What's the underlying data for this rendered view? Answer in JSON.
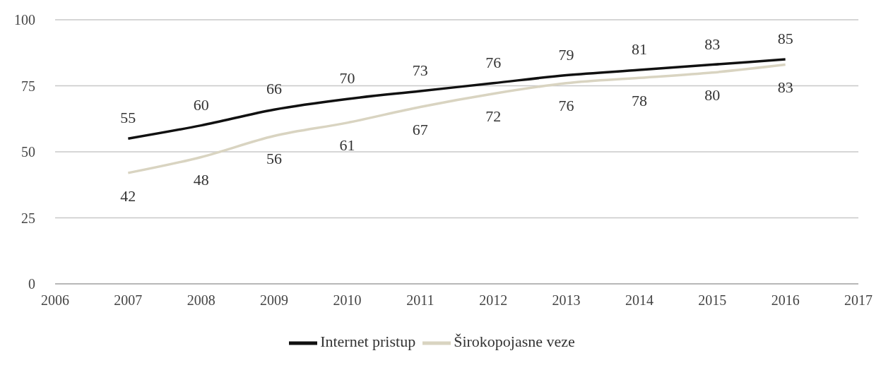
{
  "chart_data": {
    "type": "line",
    "x": [
      2007,
      2008,
      2009,
      2010,
      2011,
      2012,
      2013,
      2014,
      2015,
      2016
    ],
    "series": [
      {
        "name": "Internet pristup",
        "color": "#111111",
        "values": [
          55,
          60,
          66,
          70,
          73,
          76,
          79,
          81,
          83,
          85
        ]
      },
      {
        "name": "Širokopojasne veze",
        "color": "#d9d4c1",
        "values": [
          42,
          48,
          56,
          61,
          67,
          72,
          76,
          78,
          80,
          83
        ]
      }
    ],
    "xlim": [
      2006,
      2017
    ],
    "xticks": [
      2006,
      2007,
      2008,
      2009,
      2010,
      2011,
      2012,
      2013,
      2014,
      2015,
      2016,
      2017
    ],
    "ylim": [
      0,
      100
    ],
    "yticks": [
      0,
      25,
      50,
      75,
      100
    ],
    "grid": "y",
    "legend": "bottom",
    "data_labels": true,
    "marker": "none",
    "line_style": "solid"
  }
}
